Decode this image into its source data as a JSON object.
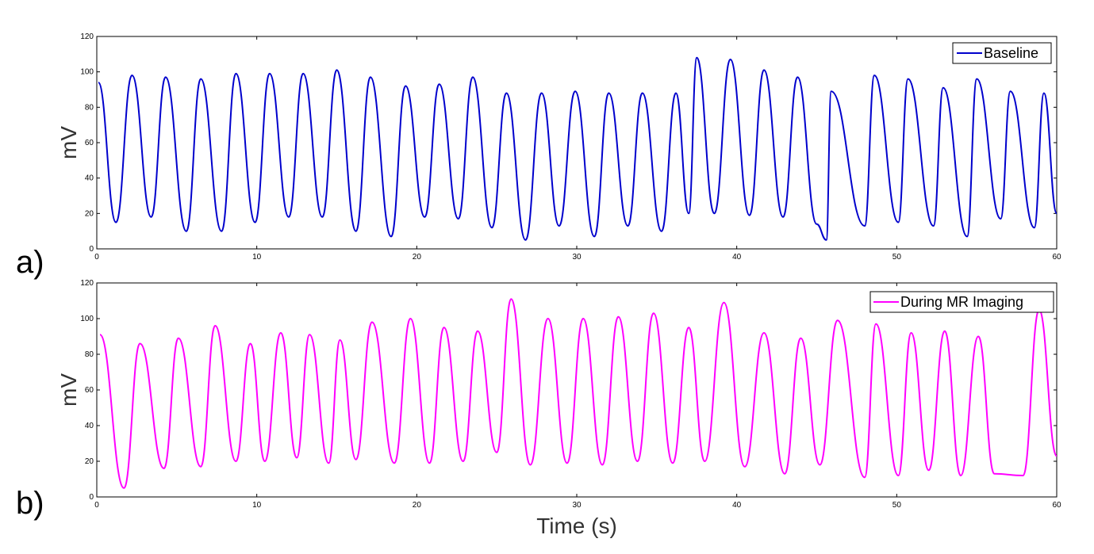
{
  "chart_data": [
    {
      "type": "line",
      "panel_label": "a)",
      "xlabel": "",
      "ylabel": "mV",
      "xlim": [
        0,
        60
      ],
      "ylim": [
        0,
        120
      ],
      "xticks": [
        0,
        10,
        20,
        30,
        40,
        50,
        60
      ],
      "yticks": [
        0,
        20,
        40,
        60,
        80,
        100,
        120
      ],
      "grid": false,
      "legend_position": "top-right",
      "series": [
        {
          "name": "Baseline",
          "color": "#0000cc",
          "peaks": [
            [
              0.1,
              94
            ],
            [
              2.2,
              98
            ],
            [
              4.3,
              97
            ],
            [
              6.5,
              96
            ],
            [
              8.7,
              99
            ],
            [
              10.8,
              99
            ],
            [
              12.9,
              99
            ],
            [
              15.0,
              101
            ],
            [
              17.1,
              97
            ],
            [
              19.3,
              92
            ],
            [
              21.4,
              93
            ],
            [
              23.5,
              97
            ],
            [
              25.6,
              88
            ],
            [
              27.8,
              88
            ],
            [
              29.9,
              89
            ],
            [
              32.0,
              88
            ],
            [
              34.1,
              88
            ],
            [
              36.2,
              88
            ],
            [
              37.5,
              108
            ],
            [
              39.6,
              107
            ],
            [
              41.7,
              101
            ],
            [
              43.8,
              97
            ],
            [
              45.9,
              89
            ],
            [
              48.6,
              98
            ],
            [
              50.7,
              96
            ],
            [
              52.9,
              91
            ],
            [
              55.0,
              96
            ],
            [
              57.1,
              89
            ],
            [
              59.2,
              88
            ]
          ],
          "troughs": [
            [
              1.2,
              15
            ],
            [
              3.4,
              18
            ],
            [
              5.6,
              10
            ],
            [
              7.8,
              10
            ],
            [
              9.9,
              15
            ],
            [
              12.0,
              18
            ],
            [
              14.1,
              18
            ],
            [
              16.2,
              10
            ],
            [
              18.4,
              7
            ],
            [
              20.5,
              18
            ],
            [
              22.6,
              17
            ],
            [
              24.7,
              12
            ],
            [
              26.8,
              5
            ],
            [
              28.9,
              13
            ],
            [
              31.1,
              7
            ],
            [
              33.2,
              13
            ],
            [
              35.3,
              10
            ],
            [
              37.0,
              20
            ],
            [
              38.6,
              20
            ],
            [
              40.8,
              19
            ],
            [
              42.9,
              18
            ],
            [
              45.0,
              14
            ],
            [
              45.6,
              5
            ],
            [
              48.0,
              13
            ],
            [
              50.1,
              15
            ],
            [
              52.3,
              13
            ],
            [
              54.4,
              7
            ],
            [
              56.5,
              17
            ],
            [
              58.6,
              12
            ],
            [
              60.0,
              20
            ]
          ]
        }
      ]
    },
    {
      "type": "line",
      "panel_label": "b)",
      "xlabel": "Time (s)",
      "ylabel": "mV",
      "xlim": [
        0,
        60
      ],
      "ylim": [
        0,
        120
      ],
      "xticks": [
        0,
        10,
        20,
        30,
        40,
        50,
        60
      ],
      "yticks": [
        0,
        20,
        40,
        60,
        80,
        100,
        120
      ],
      "grid": false,
      "legend_position": "top-right",
      "series": [
        {
          "name": "During MR Imaging",
          "color": "#ff00ff",
          "peaks": [
            [
              0.2,
              91
            ],
            [
              2.7,
              86
            ],
            [
              5.1,
              89
            ],
            [
              7.4,
              96
            ],
            [
              9.6,
              86
            ],
            [
              11.5,
              92
            ],
            [
              13.3,
              91
            ],
            [
              15.2,
              88
            ],
            [
              17.2,
              98
            ],
            [
              19.6,
              100
            ],
            [
              21.7,
              95
            ],
            [
              23.8,
              93
            ],
            [
              25.9,
              111
            ],
            [
              28.2,
              100
            ],
            [
              30.4,
              100
            ],
            [
              32.6,
              101
            ],
            [
              34.8,
              103
            ],
            [
              37.0,
              95
            ],
            [
              39.2,
              109
            ],
            [
              41.7,
              92
            ],
            [
              44.0,
              89
            ],
            [
              46.3,
              99
            ],
            [
              48.7,
              97
            ],
            [
              50.9,
              92
            ],
            [
              53.0,
              93
            ],
            [
              55.1,
              90
            ],
            [
              58.9,
              105
            ]
          ],
          "troughs": [
            [
              1.7,
              5
            ],
            [
              4.2,
              16
            ],
            [
              6.5,
              17
            ],
            [
              8.7,
              20
            ],
            [
              10.5,
              20
            ],
            [
              12.5,
              22
            ],
            [
              14.5,
              19
            ],
            [
              16.2,
              21
            ],
            [
              18.6,
              19
            ],
            [
              20.8,
              19
            ],
            [
              22.9,
              20
            ],
            [
              25.0,
              25
            ],
            [
              27.1,
              18
            ],
            [
              29.4,
              19
            ],
            [
              31.6,
              18
            ],
            [
              33.8,
              20
            ],
            [
              36.0,
              19
            ],
            [
              38.0,
              20
            ],
            [
              40.5,
              17
            ],
            [
              43.0,
              13
            ],
            [
              45.2,
              18
            ],
            [
              48.0,
              11
            ],
            [
              50.1,
              12
            ],
            [
              52.0,
              15
            ],
            [
              54.0,
              12
            ],
            [
              56.1,
              13
            ],
            [
              57.9,
              12
            ],
            [
              60.0,
              23
            ]
          ]
        }
      ]
    }
  ]
}
